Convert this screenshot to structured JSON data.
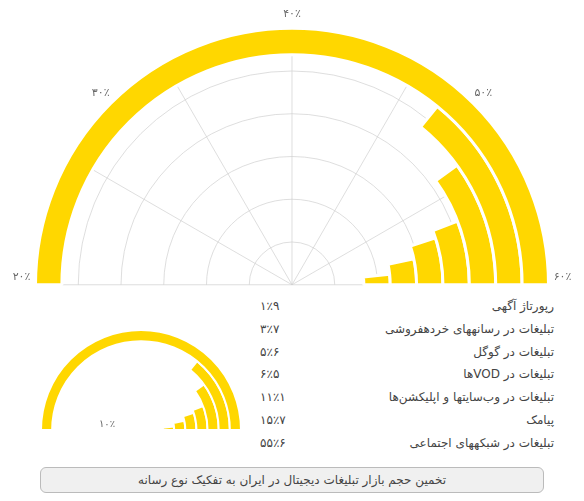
{
  "chart_data": {
    "type": "radial_bar",
    "categories": [
      "رپورتاژ آگهی",
      "تبلیغات در رسانههای خردهفروشی",
      "تبلیغات در گوگل",
      "تبلیغات در VODها",
      "تبلیغات در وب‌سایتها و اپلیکشن‌ها",
      "پیامک",
      "تبلیغات در شبکههای اجتماعی"
    ],
    "values": [
      1.9,
      3.7,
      5.6,
      6.5,
      11.1,
      15.7,
      55.6
    ],
    "value_labels": [
      "۱٪۹‏",
      "۳٪۷‏",
      "۵٪۶‏",
      "۶٪۵‏",
      "۱۱٪۱‏",
      "۱۵٪۷‏",
      "۵۵٪۶‏"
    ],
    "color": "#FFD700",
    "annotations": [
      "۶۰٪",
      "۵۰٪",
      "۴۰٪",
      "۳۰٪",
      "۲۰٪",
      "۱۰٪"
    ],
    "subtitle": "تخمین حجم بازار تبلیغات دیجیتال در ایران به تفکیک نوع رسانه",
    "grid": true
  }
}
